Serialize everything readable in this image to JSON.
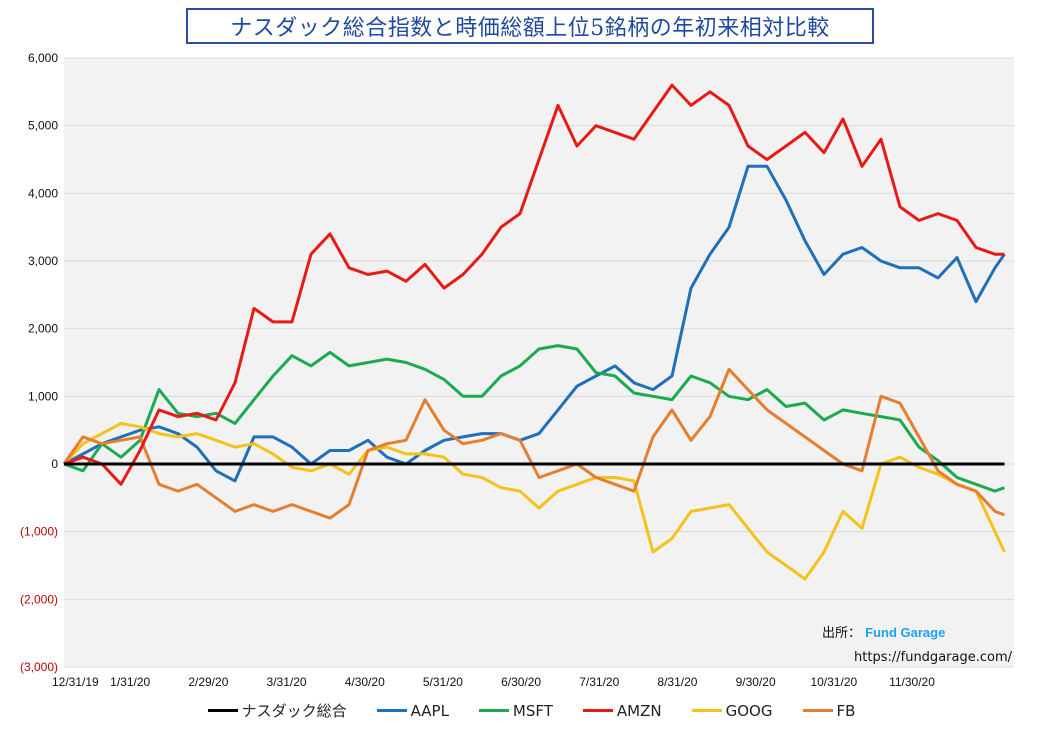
{
  "chart_data": {
    "type": "line",
    "title": "ナスダック総合指数と時価総額上位5銘柄の年初来相対比較",
    "y_tick_labels": [
      "6,000",
      "5,000",
      "4,000",
      "3,000",
      "2,000",
      "1,000",
      "0",
      "(1,000)",
      "(2,000)",
      "(3,000)"
    ],
    "y_tick_values": [
      6000,
      5000,
      4000,
      3000,
      2000,
      1000,
      0,
      -1000,
      -2000,
      -3000
    ],
    "negative_tick_color": "#c00000",
    "positive_tick_color": "#111111",
    "x_tick_labels": [
      "12/31/19",
      "1/31/20",
      "2/29/20",
      "3/31/20",
      "4/30/20",
      "5/31/20",
      "6/30/20",
      "7/31/20",
      "8/31/20",
      "9/30/20",
      "10/31/20",
      "11/30/20"
    ],
    "ylim": [
      -3000,
      6000
    ],
    "xlim": [
      0,
      50
    ],
    "grid": true,
    "legend_position": "bottom",
    "series": [
      {
        "name": "ナスダック総合",
        "color": "#000000",
        "width": 3,
        "x": [
          0,
          49.5
        ],
        "values": [
          0,
          0
        ]
      },
      {
        "name": "AAPL",
        "color": "#1f6fba",
        "width": 3,
        "x": [
          0,
          1,
          2,
          3,
          4,
          5,
          6,
          7,
          8,
          9,
          10,
          11,
          12,
          13,
          14,
          15,
          16,
          17,
          18,
          19,
          20,
          21,
          22,
          23,
          24,
          25,
          26,
          27,
          28,
          29,
          30,
          31,
          32,
          33,
          34,
          35,
          36,
          37,
          38,
          39,
          40,
          41,
          42,
          43,
          44,
          45,
          46,
          47,
          48,
          49,
          49.5
        ],
        "values": [
          0,
          150,
          300,
          400,
          500,
          550,
          450,
          250,
          -100,
          -250,
          400,
          400,
          250,
          0,
          200,
          200,
          350,
          100,
          0,
          200,
          350,
          400,
          450,
          450,
          350,
          450,
          800,
          1150,
          1300,
          1450,
          1200,
          1100,
          1300,
          2600,
          3100,
          3500,
          4400,
          4400,
          3900,
          3300,
          2800,
          3100,
          3200,
          3000,
          2900,
          2900,
          2750,
          3050,
          2400,
          2900,
          3100
        ]
      },
      {
        "name": "MSFT",
        "color": "#1aab4f",
        "width": 3,
        "x": [
          0,
          1,
          2,
          3,
          4,
          5,
          6,
          7,
          8,
          9,
          10,
          11,
          12,
          13,
          14,
          15,
          16,
          17,
          18,
          19,
          20,
          21,
          22,
          23,
          24,
          25,
          26,
          27,
          28,
          29,
          30,
          31,
          32,
          33,
          34,
          35,
          36,
          37,
          38,
          39,
          40,
          41,
          42,
          43,
          44,
          45,
          46,
          47,
          48,
          49,
          49.5
        ],
        "values": [
          0,
          -100,
          300,
          100,
          350,
          1100,
          750,
          700,
          750,
          600,
          950,
          1300,
          1600,
          1450,
          1650,
          1450,
          1500,
          1550,
          1500,
          1400,
          1250,
          1000,
          1000,
          1300,
          1450,
          1700,
          1750,
          1700,
          1350,
          1300,
          1050,
          1000,
          950,
          1300,
          1200,
          1000,
          950,
          1100,
          850,
          900,
          650,
          800,
          750,
          700,
          650,
          250,
          50,
          -200,
          -300,
          -400,
          -350
        ]
      },
      {
        "name": "AMZN",
        "color": "#e81a16",
        "width": 3,
        "x": [
          0,
          1,
          2,
          3,
          4,
          5,
          6,
          7,
          8,
          9,
          10,
          11,
          12,
          13,
          14,
          15,
          16,
          17,
          18,
          19,
          20,
          21,
          22,
          23,
          24,
          25,
          26,
          27,
          28,
          29,
          30,
          31,
          32,
          33,
          34,
          35,
          36,
          37,
          38,
          39,
          40,
          41,
          42,
          43,
          44,
          45,
          46,
          47,
          48,
          49,
          49.5
        ],
        "values": [
          0,
          100,
          0,
          -300,
          200,
          800,
          700,
          750,
          650,
          1200,
          2300,
          2100,
          2100,
          3100,
          3400,
          2900,
          2800,
          2850,
          2700,
          2950,
          2600,
          2800,
          3100,
          3500,
          3700,
          4500,
          5300,
          4700,
          5000,
          4900,
          4800,
          5200,
          5600,
          5300,
          5500,
          5300,
          4700,
          4500,
          4700,
          4900,
          4600,
          5100,
          4400,
          4800,
          3800,
          3600,
          3700,
          3600,
          3200,
          3100,
          3100
        ]
      },
      {
        "name": "GOOG",
        "color": "#f4c21b",
        "width": 3,
        "x": [
          0,
          1,
          2,
          3,
          4,
          5,
          6,
          7,
          8,
          9,
          10,
          11,
          12,
          13,
          14,
          15,
          16,
          17,
          18,
          19,
          20,
          21,
          22,
          23,
          24,
          25,
          26,
          27,
          28,
          29,
          30,
          31,
          32,
          33,
          34,
          35,
          36,
          37,
          38,
          39,
          40,
          41,
          42,
          43,
          44,
          45,
          46,
          47,
          48,
          49,
          49.5
        ],
        "values": [
          0,
          300,
          450,
          600,
          550,
          450,
          400,
          450,
          350,
          250,
          300,
          150,
          -50,
          -100,
          0,
          -150,
          200,
          250,
          150,
          150,
          100,
          -150,
          -200,
          -350,
          -400,
          -650,
          -400,
          -300,
          -200,
          -200,
          -250,
          -1300,
          -1100,
          -700,
          -650,
          -600,
          -950,
          -1300,
          -1500,
          -1700,
          -1300,
          -700,
          -950,
          0,
          100,
          -50,
          -150,
          -300,
          -400,
          -1000,
          -1300
        ]
      },
      {
        "name": "FB",
        "color": "#e67e30",
        "width": 3,
        "x": [
          0,
          1,
          2,
          3,
          4,
          5,
          6,
          7,
          8,
          9,
          10,
          11,
          12,
          13,
          14,
          15,
          16,
          17,
          18,
          19,
          20,
          21,
          22,
          23,
          24,
          25,
          26,
          27,
          28,
          29,
          30,
          31,
          32,
          33,
          34,
          35,
          36,
          37,
          38,
          39,
          40,
          41,
          42,
          43,
          44,
          45,
          46,
          47,
          48,
          49,
          49.5
        ],
        "values": [
          0,
          400,
          300,
          350,
          400,
          -300,
          -400,
          -300,
          -500,
          -700,
          -600,
          -700,
          -600,
          -700,
          -800,
          -600,
          200,
          300,
          350,
          950,
          500,
          300,
          350,
          450,
          350,
          -200,
          -100,
          0,
          -200,
          -300,
          -400,
          400,
          800,
          350,
          700,
          1400,
          1100,
          800,
          600,
          400,
          200,
          0,
          -100,
          1000,
          900,
          400,
          -100,
          -300,
          -400,
          -700,
          -750
        ]
      }
    ]
  },
  "source": {
    "label": "出所：",
    "brand": "Fund Garage",
    "url": "https://fundgarage.com/"
  }
}
